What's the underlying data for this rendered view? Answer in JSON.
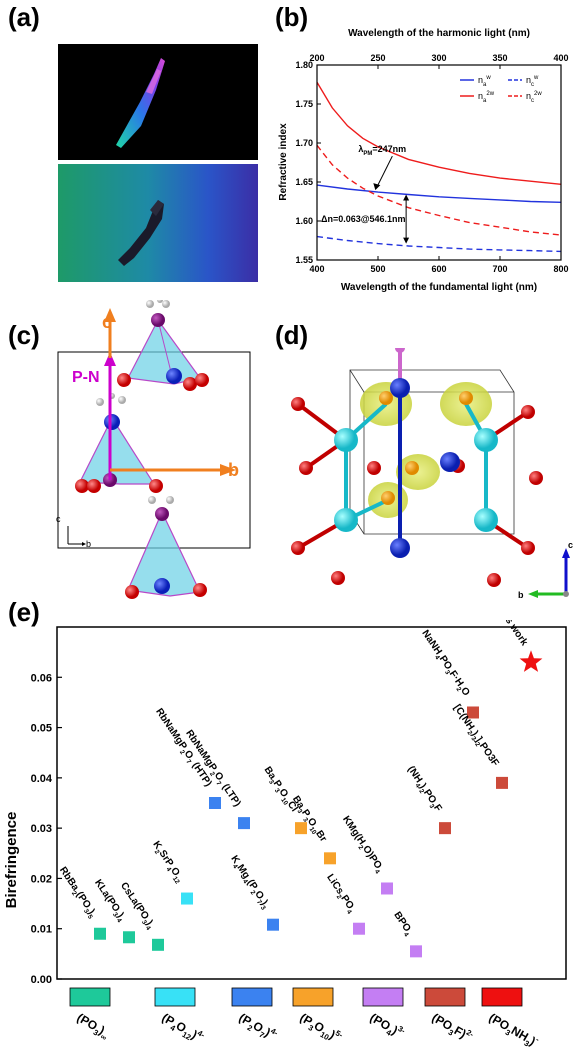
{
  "panels": {
    "a": "(a)",
    "b": "(b)",
    "c": "(c)",
    "d": "(d)",
    "e": "(e)"
  },
  "panel_c": {
    "axis_c": "c",
    "axis_b": "b",
    "pn_label": "P-N",
    "small_c": "c",
    "small_b": "b"
  },
  "panel_d": {
    "axis_c": "c",
    "axis_b": "b"
  },
  "colors": {
    "blue": "#2233dd",
    "red": "#ee1c1c",
    "orange": "#f07f1f",
    "magenta": "#cc00cc"
  },
  "chart_data": [
    {
      "type": "line",
      "xlabel": "Wavelength of the fundamental light (nm)",
      "x2label": "Wavelength of the harmonic light (nm)",
      "ylabel": "Refractive index",
      "xlim": [
        400,
        800
      ],
      "x2lim": [
        200,
        400
      ],
      "ylim": [
        1.55,
        1.8
      ],
      "xticks": [
        "400",
        "500",
        "600",
        "700",
        "800"
      ],
      "x2ticks": [
        "200",
        "250",
        "300",
        "350",
        "400"
      ],
      "yticks": [
        "1.55",
        "1.60",
        "1.65",
        "1.70",
        "1.75",
        "1.80"
      ],
      "legend": {
        "placement": "top-right",
        "entries": [
          {
            "base": "n",
            "sub": "a",
            "sup": "w",
            "style": "solid",
            "color": "#2233dd"
          },
          {
            "base": "n",
            "sub": "c",
            "sup": "w",
            "style": "dashed",
            "color": "#2233dd"
          },
          {
            "base": "n",
            "sub": "a",
            "sup": "2w",
            "style": "solid",
            "color": "#ee1c1c"
          },
          {
            "base": "n",
            "sub": "c",
            "sup": "2w",
            "style": "dashed",
            "color": "#ee1c1c"
          }
        ]
      },
      "series": [
        {
          "color": "#2233dd",
          "style": "solid",
          "x": [
            400,
            450,
            500,
            550,
            600,
            650,
            700,
            750,
            800
          ],
          "y": [
            1.646,
            1.641,
            1.637,
            1.634,
            1.631,
            1.629,
            1.627,
            1.625,
            1.624
          ]
        },
        {
          "color": "#2233dd",
          "style": "dashed",
          "x": [
            400,
            450,
            500,
            550,
            600,
            650,
            700,
            750,
            800
          ],
          "y": [
            1.58,
            1.575,
            1.571,
            1.568,
            1.566,
            1.564,
            1.563,
            1.562,
            1.561
          ]
        },
        {
          "color": "#ee1c1c",
          "style": "solid",
          "x": [
            400,
            425,
            450,
            475,
            500,
            550,
            600,
            650,
            700,
            750,
            800
          ],
          "y": [
            1.778,
            1.745,
            1.722,
            1.706,
            1.695,
            1.679,
            1.669,
            1.661,
            1.655,
            1.651,
            1.647
          ]
        },
        {
          "color": "#ee1c1c",
          "style": "dashed",
          "x": [
            400,
            425,
            450,
            475,
            500,
            550,
            600,
            650,
            700,
            750,
            800
          ],
          "y": [
            1.697,
            1.672,
            1.655,
            1.642,
            1.632,
            1.617,
            1.607,
            1.598,
            1.592,
            1.586,
            1.582
          ]
        }
      ],
      "annotations": {
        "phase_matching": {
          "lambda": "λ",
          "sub": "PM",
          "text": "=247nm",
          "x": 494,
          "y": 1.637
        },
        "delta_n": {
          "text": "Δn=0.063@546.1nm",
          "x": 546.1,
          "y_top": 1.634,
          "y_bottom": 1.571
        }
      }
    },
    {
      "type": "scatter",
      "ylabel": "Birefringence",
      "ylim": [
        0,
        0.07
      ],
      "yticks": [
        "0.00",
        "0.01",
        "0.02",
        "0.03",
        "0.04",
        "0.05",
        "0.06"
      ],
      "groups": [
        {
          "color": "#1ec99a",
          "label": [
            {
              "t": "(PO"
            },
            {
              "t": "3",
              "s": "sub"
            },
            {
              "t": ")"
            },
            {
              "t": "∞",
              "s": "sub"
            }
          ]
        },
        {
          "color": "#38e1f6",
          "label": [
            {
              "t": "(P"
            },
            {
              "t": "4",
              "s": "sub"
            },
            {
              "t": "O"
            },
            {
              "t": "12",
              "s": "sub"
            },
            {
              "t": ")"
            },
            {
              "t": "4-",
              "s": "sup"
            }
          ]
        },
        {
          "color": "#3b82f0",
          "label": [
            {
              "t": "(P"
            },
            {
              "t": "2",
              "s": "sub"
            },
            {
              "t": "O"
            },
            {
              "t": "7",
              "s": "sub"
            },
            {
              "t": ")"
            },
            {
              "t": "4-",
              "s": "sup"
            }
          ]
        },
        {
          "color": "#f7a22a",
          "label": [
            {
              "t": "(P"
            },
            {
              "t": "3",
              "s": "sub"
            },
            {
              "t": "O"
            },
            {
              "t": "10",
              "s": "sub"
            },
            {
              "t": ")"
            },
            {
              "t": "5-",
              "s": "sup"
            }
          ]
        },
        {
          "color": "#c47ef3",
          "label": [
            {
              "t": "(PO"
            },
            {
              "t": "4",
              "s": "sub"
            },
            {
              "t": ")"
            },
            {
              "t": "3-",
              "s": "sup"
            }
          ]
        },
        {
          "color": "#cc4a3a",
          "label": [
            {
              "t": "(PO"
            },
            {
              "t": "3",
              "s": "sub"
            },
            {
              "t": "F)"
            },
            {
              "t": "2-",
              "s": "sup"
            }
          ]
        },
        {
          "color": "#ee1010",
          "label": [
            {
              "t": "(PO"
            },
            {
              "t": "3",
              "s": "sub"
            },
            {
              "t": "NH"
            },
            {
              "t": "3",
              "s": "sub"
            },
            {
              "t": ")"
            },
            {
              "t": "-",
              "s": "sup"
            }
          ]
        }
      ],
      "points": [
        {
          "group": 0,
          "value": 0.009,
          "label": [
            {
              "t": "RbBa"
            },
            {
              "t": "2",
              "s": "sub"
            },
            {
              "t": "(PO"
            },
            {
              "t": "3",
              "s": "sub"
            },
            {
              "t": ")"
            },
            {
              "t": "5",
              "s": "sub"
            }
          ]
        },
        {
          "group": 0,
          "value": 0.0083,
          "label": [
            {
              "t": "KLa(PO"
            },
            {
              "t": "3",
              "s": "sub"
            },
            {
              "t": ")"
            },
            {
              "t": "4",
              "s": "sub"
            }
          ]
        },
        {
          "group": 0,
          "value": 0.0068,
          "label": [
            {
              "t": "CsLa(PO"
            },
            {
              "t": "3",
              "s": "sub"
            },
            {
              "t": ")"
            },
            {
              "t": "4",
              "s": "sub"
            }
          ]
        },
        {
          "group": 1,
          "value": 0.016,
          "label": [
            {
              "t": "K"
            },
            {
              "t": "2",
              "s": "sub"
            },
            {
              "t": "SrP"
            },
            {
              "t": "4",
              "s": "sub"
            },
            {
              "t": "O"
            },
            {
              "t": "12",
              "s": "sub"
            }
          ]
        },
        {
          "group": 2,
          "value": 0.035,
          "label": [
            {
              "t": "RbNaMgP"
            },
            {
              "t": "2",
              "s": "sub"
            },
            {
              "t": "O"
            },
            {
              "t": "7",
              "s": "sub"
            },
            {
              "t": " (HTP)"
            }
          ]
        },
        {
          "group": 2,
          "value": 0.031,
          "label": [
            {
              "t": "RbNaMgP"
            },
            {
              "t": "2",
              "s": "sub"
            },
            {
              "t": "O"
            },
            {
              "t": "7",
              "s": "sub"
            },
            {
              "t": " (LTP)"
            }
          ]
        },
        {
          "group": 2,
          "value": 0.0108,
          "label": [
            {
              "t": "K"
            },
            {
              "t": "4",
              "s": "sub"
            },
            {
              "t": "Mg"
            },
            {
              "t": "4",
              "s": "sub"
            },
            {
              "t": "(P"
            },
            {
              "t": "2",
              "s": "sub"
            },
            {
              "t": "O"
            },
            {
              "t": "7",
              "s": "sub"
            },
            {
              "t": ")"
            },
            {
              "t": "3",
              "s": "sub"
            }
          ]
        },
        {
          "group": 3,
          "value": 0.03,
          "label": [
            {
              "t": "Ba"
            },
            {
              "t": "3",
              "s": "sub"
            },
            {
              "t": "P"
            },
            {
              "t": "3",
              "s": "sub"
            },
            {
              "t": "O"
            },
            {
              "t": "10",
              "s": "sub"
            },
            {
              "t": "Cl"
            }
          ]
        },
        {
          "group": 3,
          "value": 0.024,
          "label": [
            {
              "t": "Ba"
            },
            {
              "t": "3",
              "s": "sub"
            },
            {
              "t": "P"
            },
            {
              "t": "3",
              "s": "sub"
            },
            {
              "t": "O"
            },
            {
              "t": "10",
              "s": "sub"
            },
            {
              "t": "Br"
            }
          ]
        },
        {
          "group": 4,
          "value": 0.01,
          "label": [
            {
              "t": "LiCs"
            },
            {
              "t": "2",
              "s": "sub"
            },
            {
              "t": "PO"
            },
            {
              "t": "4",
              "s": "sub"
            }
          ]
        },
        {
          "group": 4,
          "value": 0.018,
          "label": [
            {
              "t": "KMg(H"
            },
            {
              "t": "2",
              "s": "sub"
            },
            {
              "t": "O)PO"
            },
            {
              "t": "4",
              "s": "sub"
            }
          ]
        },
        {
          "group": 4,
          "value": 0.0055,
          "label": [
            {
              "t": "BPO"
            },
            {
              "t": "4",
              "s": "sub"
            }
          ]
        },
        {
          "group": 5,
          "value": 0.03,
          "label": [
            {
              "t": "(NH"
            },
            {
              "t": "4",
              "s": "sub"
            },
            {
              "t": ")"
            },
            {
              "t": "2",
              "s": "sub"
            },
            {
              "t": "PO"
            },
            {
              "t": "3",
              "s": "sub"
            },
            {
              "t": "F"
            }
          ]
        },
        {
          "group": 5,
          "value": 0.053,
          "label": [
            {
              "t": "NaNH"
            },
            {
              "t": "4",
              "s": "sub"
            },
            {
              "t": "PO"
            },
            {
              "t": "3",
              "s": "sub"
            },
            {
              "t": "F·H"
            },
            {
              "t": "2",
              "s": "sub"
            },
            {
              "t": "O"
            }
          ]
        },
        {
          "group": 5,
          "value": 0.039,
          "label": [
            {
              "t": "[C(NH"
            },
            {
              "t": "2",
              "s": "sub"
            },
            {
              "t": ")"
            },
            {
              "t": "3",
              "s": "sub"
            },
            {
              "t": "]"
            },
            {
              "t": "2",
              "s": "sub"
            },
            {
              "t": "PO3F"
            }
          ]
        },
        {
          "group": 6,
          "value": 0.063,
          "star": true,
          "label": [
            {
              "t": "This work"
            }
          ]
        }
      ]
    }
  ]
}
